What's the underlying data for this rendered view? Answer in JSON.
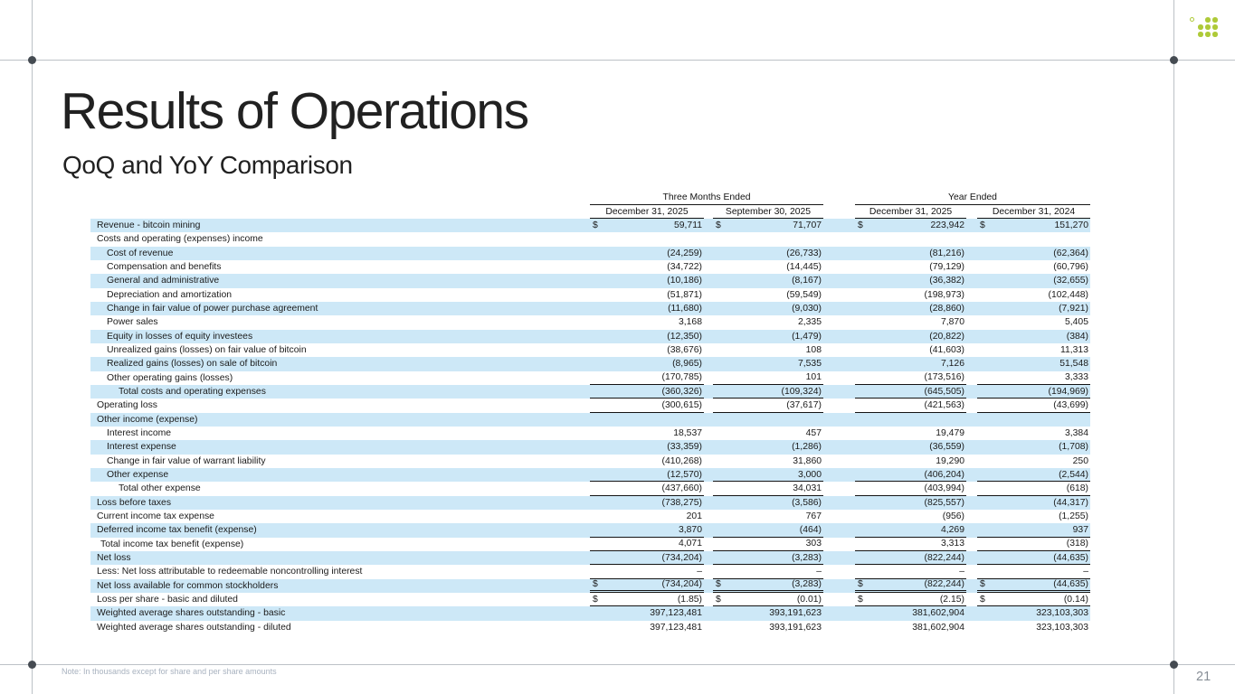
{
  "slide": {
    "title": "Results of Operations",
    "subtitle": "QoQ and YoY Comparison",
    "note": "Note: In thousands except for share and per share amounts",
    "page_number": "21"
  },
  "colors": {
    "highlight_blue": "#cde8f7",
    "logo_green": "#aeca38",
    "frame_line": "#bcc1c6",
    "frame_dot": "#454b52",
    "table_line": "#141414"
  },
  "table": {
    "group_headers": [
      "Three Months Ended",
      "Year Ended"
    ],
    "column_headers": [
      "December 31, 2025",
      "September 30, 2025",
      "December 31, 2025",
      "December 31, 2024"
    ],
    "rows": [
      {
        "label": "Revenue - bitcoin mining",
        "indent": 0,
        "highlight": true,
        "dollar": true,
        "border": null,
        "values": [
          "59,711",
          "71,707",
          "223,942",
          "151,270"
        ]
      },
      {
        "label": "Costs and operating (expenses) income",
        "indent": 0,
        "highlight": false,
        "dollar": false,
        "border": null,
        "values": [
          "",
          "",
          "",
          ""
        ]
      },
      {
        "label": "Cost of revenue",
        "indent": 1,
        "highlight": true,
        "dollar": false,
        "border": null,
        "values": [
          "(24,259)",
          "(26,733)",
          "(81,216)",
          "(62,364)"
        ]
      },
      {
        "label": "Compensation and benefits",
        "indent": 1,
        "highlight": false,
        "dollar": false,
        "border": null,
        "values": [
          "(34,722)",
          "(14,445)",
          "(79,129)",
          "(60,796)"
        ]
      },
      {
        "label": "General and administrative",
        "indent": 1,
        "highlight": true,
        "dollar": false,
        "border": null,
        "values": [
          "(10,186)",
          "(8,167)",
          "(36,382)",
          "(32,655)"
        ]
      },
      {
        "label": "Depreciation and amortization",
        "indent": 1,
        "highlight": false,
        "dollar": false,
        "border": null,
        "values": [
          "(51,871)",
          "(59,549)",
          "(198,973)",
          "(102,448)"
        ]
      },
      {
        "label": "Change in fair value of power purchase agreement",
        "indent": 1,
        "highlight": true,
        "dollar": false,
        "border": null,
        "values": [
          "(11,680)",
          "(9,030)",
          "(28,860)",
          "(7,921)"
        ]
      },
      {
        "label": "Power sales",
        "indent": 1,
        "highlight": false,
        "dollar": false,
        "border": null,
        "values": [
          "3,168",
          "2,335",
          "7,870",
          "5,405"
        ]
      },
      {
        "label": "Equity in losses of equity investees",
        "indent": 1,
        "highlight": true,
        "dollar": false,
        "border": null,
        "values": [
          "(12,350)",
          "(1,479)",
          "(20,822)",
          "(384)"
        ]
      },
      {
        "label": "Unrealized gains (losses) on fair value of bitcoin",
        "indent": 1,
        "highlight": false,
        "dollar": false,
        "border": null,
        "values": [
          "(38,676)",
          "108",
          "(41,603)",
          "11,313"
        ]
      },
      {
        "label": "Realized gains (losses) on sale of bitcoin",
        "indent": 1,
        "highlight": true,
        "dollar": false,
        "border": null,
        "values": [
          "(8,965)",
          "7,535",
          "7,126",
          "51,548"
        ]
      },
      {
        "label": "Other operating gains (losses)",
        "indent": 1,
        "highlight": false,
        "dollar": false,
        "border": "single",
        "values": [
          "(170,785)",
          "101",
          "(173,516)",
          "3,333"
        ]
      },
      {
        "label": "Total costs and operating expenses",
        "indent": 2,
        "highlight": true,
        "dollar": false,
        "border": "single",
        "values": [
          "(360,326)",
          "(109,324)",
          "(645,505)",
          "(194,969)"
        ]
      },
      {
        "label": "Operating loss",
        "indent": 0,
        "highlight": false,
        "dollar": false,
        "border": "single",
        "values": [
          "(300,615)",
          "(37,617)",
          "(421,563)",
          "(43,699)"
        ]
      },
      {
        "label": "Other income (expense)",
        "indent": 0,
        "highlight": true,
        "dollar": false,
        "border": null,
        "values": [
          "",
          "",
          "",
          ""
        ]
      },
      {
        "label": "Interest income",
        "indent": 1,
        "highlight": false,
        "dollar": false,
        "border": null,
        "values": [
          "18,537",
          "457",
          "19,479",
          "3,384"
        ]
      },
      {
        "label": "Interest expense",
        "indent": 1,
        "highlight": true,
        "dollar": false,
        "border": null,
        "values": [
          "(33,359)",
          "(1,286)",
          "(36,559)",
          "(1,708)"
        ]
      },
      {
        "label": "Change in fair value of warrant liability",
        "indent": 1,
        "highlight": false,
        "dollar": false,
        "border": null,
        "values": [
          "(410,268)",
          "31,860",
          "19,290",
          "250"
        ]
      },
      {
        "label": "Other expense",
        "indent": 1,
        "highlight": true,
        "dollar": false,
        "border": "single",
        "values": [
          "(12,570)",
          "3,000",
          "(406,204)",
          "(2,544)"
        ]
      },
      {
        "label": "Total other expense",
        "indent": 2,
        "highlight": false,
        "dollar": false,
        "border": "single",
        "values": [
          "(437,660)",
          "34,031",
          "(403,994)",
          "(618)"
        ]
      },
      {
        "label": "Loss before taxes",
        "indent": 0,
        "highlight": true,
        "dollar": false,
        "border": null,
        "values": [
          "(738,275)",
          "(3,586)",
          "(825,557)",
          "(44,317)"
        ]
      },
      {
        "label": "Current income tax expense",
        "indent": 0,
        "highlight": false,
        "dollar": false,
        "border": null,
        "values": [
          "201",
          "767",
          "(956)",
          "(1,255)"
        ]
      },
      {
        "label": "Deferred income tax benefit (expense)",
        "indent": 0,
        "highlight": true,
        "dollar": false,
        "border": "single",
        "values": [
          "3,870",
          "(464)",
          "4,269",
          "937"
        ]
      },
      {
        "label": "Total income tax benefit (expense)",
        "indent": 0.5,
        "highlight": false,
        "dollar": false,
        "border": "single",
        "values": [
          "4,071",
          "303",
          "3,313",
          "(318)"
        ]
      },
      {
        "label": "Net loss",
        "indent": 0,
        "highlight": true,
        "dollar": false,
        "border": "single",
        "values": [
          "(734,204)",
          "(3,283)",
          "(822,244)",
          "(44,635)"
        ]
      },
      {
        "label": "Less: Net loss attributable to redeemable noncontrolling interest",
        "indent": 0,
        "highlight": false,
        "dollar": false,
        "border": "single",
        "values": [
          "–",
          "–",
          "–",
          "–"
        ]
      },
      {
        "label": "Net loss available for common stockholders",
        "indent": 0,
        "highlight": true,
        "dollar": true,
        "border": "double",
        "values": [
          "(734,204)",
          "(3,283)",
          "(822,244)",
          "(44,635)"
        ]
      },
      {
        "label": "Loss per share - basic and diluted",
        "indent": 0,
        "highlight": false,
        "dollar": true,
        "border": "single",
        "values": [
          "(1.85)",
          "(0.01)",
          "(2.15)",
          "(0.14)"
        ]
      },
      {
        "label": "Weighted average shares outstanding - basic",
        "indent": 0,
        "highlight": true,
        "dollar": false,
        "border": null,
        "values": [
          "397,123,481",
          "393,191,623",
          "381,602,904",
          "323,103,303"
        ]
      },
      {
        "label": "Weighted average shares outstanding - diluted",
        "indent": 0,
        "highlight": false,
        "dollar": false,
        "border": null,
        "values": [
          "397,123,481",
          "393,191,623",
          "381,602,904",
          "323,103,303"
        ]
      }
    ]
  }
}
